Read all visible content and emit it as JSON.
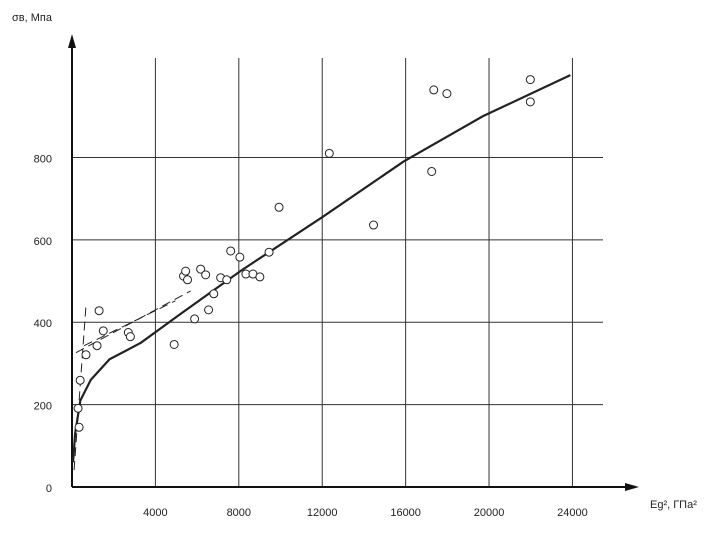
{
  "chart_data": {
    "type": "scatter",
    "y_label": "σв, Мпа",
    "x_label": "Eg², ГПа²",
    "xlim": [
      0,
      27000
    ],
    "ylim": [
      0,
      1090
    ],
    "xticks": [
      4000,
      8000,
      12000,
      16000,
      20000,
      24000
    ],
    "yticks": [
      0,
      200,
      400,
      600,
      800
    ],
    "grid": true,
    "color": "#222222",
    "points": {
      "x": [
        340,
        290,
        390,
        670,
        1200,
        1300,
        1500,
        2700,
        2800,
        4900,
        5350,
        5450,
        5540,
        5880,
        6170,
        6410,
        6550,
        6800,
        7130,
        7420,
        7610,
        8050,
        8340,
        8680,
        9010,
        9450,
        9930,
        12340,
        14460,
        17250,
        17350,
        17980,
        21980,
        21980
      ],
      "y": [
        145,
        191,
        259,
        321,
        343,
        428,
        379,
        375,
        365,
        346,
        512,
        524,
        503,
        408,
        529,
        515,
        430,
        469,
        508,
        503,
        573,
        558,
        517,
        517,
        510,
        570,
        679,
        810,
        636,
        766,
        964,
        955,
        989,
        935
      ]
    },
    "lines": [
      {
        "style": "solid",
        "x": [
          50,
          150,
          400,
          900,
          1800,
          3300,
          5200,
          8100,
          12000,
          15900,
          19700,
          23900
        ],
        "y": [
          60,
          130,
          210,
          260,
          310,
          350,
          420,
          525,
          655,
          790,
          900,
          1000
        ]
      },
      {
        "style": "dashed",
        "x": [
          190,
          5690
        ],
        "y": [
          326,
          476
        ]
      },
      {
        "style": "dashed",
        "x": [
          580,
          4960
        ],
        "y": [
          343,
          452
        ]
      },
      {
        "style": "dashed",
        "x": [
          100,
          670
        ],
        "y": [
          41,
          440
        ]
      }
    ]
  }
}
